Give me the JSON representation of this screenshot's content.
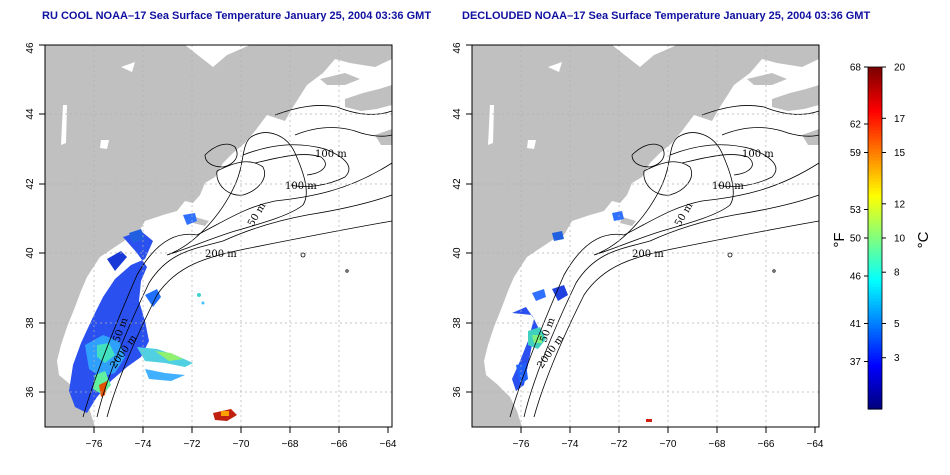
{
  "titles": {
    "left": "RU COOL NOAA–17 Sea Surface Temperature January 25, 2004 03:36 GMT",
    "right": "DECLOUDED NOAA–17 Sea Surface Temperature January 25, 2004 03:36 GMT"
  },
  "axes": {
    "x_ticks": [
      "−76",
      "−74",
      "−72",
      "−70",
      "−68",
      "−66",
      "−64"
    ],
    "x_values": [
      -76,
      -74,
      -72,
      -70,
      -68,
      -66,
      -64
    ],
    "y_ticks": [
      "36",
      "38",
      "40",
      "42",
      "44",
      "46"
    ],
    "y_values": [
      36,
      38,
      40,
      42,
      44,
      46
    ],
    "lon_range": [
      -77.2,
      -63.0
    ],
    "lat_range": [
      35.0,
      46.0
    ],
    "grid": true
  },
  "contour_labels": [
    "100 m",
    "100 m",
    "50 m",
    "200 m",
    "50 m",
    "2000 m"
  ],
  "colorbar": {
    "fahrenheit_ticks": [
      "68",
      "62",
      "59",
      "53",
      "50",
      "46",
      "41",
      "37"
    ],
    "fahrenheit_values": [
      68,
      62,
      59,
      53,
      50,
      46,
      41,
      37
    ],
    "celsius_ticks": [
      "20",
      "17",
      "15",
      "12",
      "10",
      "8",
      "5",
      "3"
    ],
    "celsius_values": [
      20,
      17,
      15,
      12,
      10,
      8,
      5,
      3
    ],
    "range_celsius": [
      0,
      20
    ],
    "left_unit": "°F",
    "right_unit": "°C",
    "colors": [
      "#00007f",
      "#0000ff",
      "#0080ff",
      "#00ffff",
      "#80ff80",
      "#ffff00",
      "#ff8000",
      "#ff0000",
      "#7f0000"
    ]
  },
  "colors": {
    "land": "#c0c0c0",
    "ocean": "#ffffff",
    "title": "#1010a0",
    "grid": "#b0b0b0"
  }
}
